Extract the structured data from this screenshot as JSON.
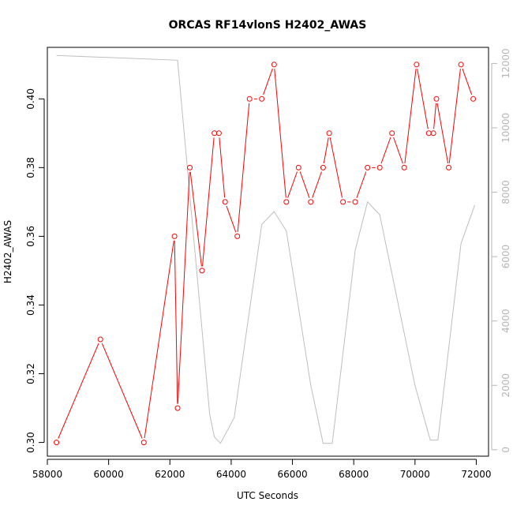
{
  "chart_data": {
    "type": "line",
    "title": "ORCAS RF14vlonS H2402_AWAS",
    "xlabel": "UTC Seconds",
    "ylabel": "H2402_AWAS",
    "xlim": [
      58000,
      72400
    ],
    "ylim": [
      0.296,
      0.415
    ],
    "y2lim": [
      -200,
      12500
    ],
    "x_ticks": [
      58000,
      60000,
      62000,
      64000,
      66000,
      68000,
      70000,
      72000
    ],
    "y_ticks": [
      0.3,
      0.32,
      0.34,
      0.36,
      0.38,
      0.4
    ],
    "y_tick_labels": [
      "0.30",
      "0.32",
      "0.34",
      "0.36",
      "0.38",
      "0.40"
    ],
    "y2_ticks": [
      0,
      2000,
      4000,
      6000,
      8000,
      10000,
      12000
    ],
    "colors": {
      "primary": "#ff0000",
      "secondary": "#bebebe"
    },
    "series": [
      {
        "axis": "left",
        "style": "b",
        "color": "#ff0000",
        "points": [
          [
            58300,
            0.3
          ],
          [
            59730,
            0.33
          ],
          [
            61150,
            0.3
          ],
          [
            62150,
            0.36
          ],
          [
            62250,
            0.31
          ],
          [
            62650,
            0.38
          ],
          [
            63050,
            0.35
          ],
          [
            63450,
            0.39
          ],
          [
            63600,
            0.39
          ],
          [
            63800,
            0.37
          ],
          [
            64200,
            0.36
          ],
          [
            64600,
            0.4
          ],
          [
            65000,
            0.4
          ],
          [
            65400,
            0.41
          ],
          [
            65800,
            0.37
          ],
          [
            66200,
            0.38
          ],
          [
            66600,
            0.37
          ],
          [
            67000,
            0.38
          ],
          [
            67200,
            0.39
          ],
          [
            67650,
            0.37
          ],
          [
            68050,
            0.37
          ],
          [
            68450,
            0.38
          ],
          [
            68850,
            0.38
          ],
          [
            69250,
            0.39
          ],
          [
            69650,
            0.38
          ],
          [
            70050,
            0.41
          ],
          [
            70450,
            0.39
          ],
          [
            70600,
            0.39
          ],
          [
            70700,
            0.4
          ],
          [
            71100,
            0.38
          ],
          [
            71500,
            0.41
          ],
          [
            71900,
            0.4
          ]
        ]
      },
      {
        "axis": "right",
        "style": "l",
        "color": "#bebebe",
        "points": [
          [
            58300,
            12250
          ],
          [
            62250,
            12100
          ],
          [
            63300,
            1100
          ],
          [
            63450,
            400
          ],
          [
            63650,
            200
          ],
          [
            64100,
            1000
          ],
          [
            65000,
            7000
          ],
          [
            65400,
            7400
          ],
          [
            65800,
            6800
          ],
          [
            66600,
            2000
          ],
          [
            67000,
            200
          ],
          [
            67300,
            200
          ],
          [
            68050,
            6200
          ],
          [
            68450,
            7700
          ],
          [
            68850,
            7300
          ],
          [
            70000,
            2000
          ],
          [
            70500,
            300
          ],
          [
            70750,
            300
          ],
          [
            71500,
            6400
          ],
          [
            71950,
            7600
          ]
        ]
      }
    ]
  }
}
